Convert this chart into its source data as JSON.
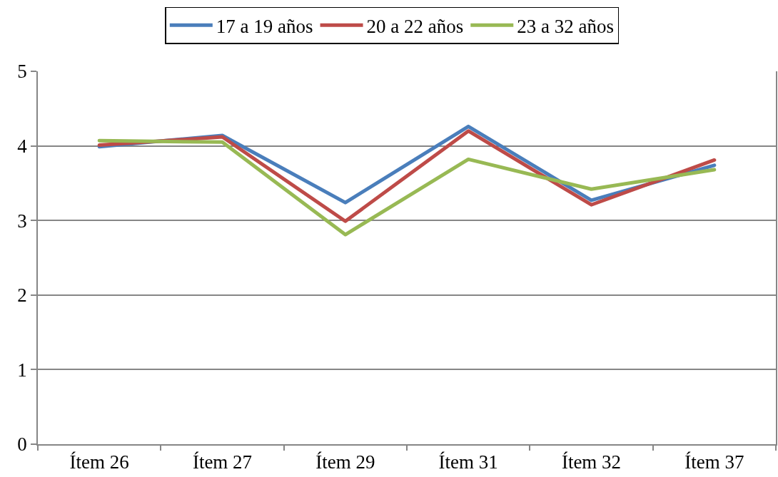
{
  "chart_data": {
    "type": "line",
    "categories": [
      "Ítem 26",
      "Ítem 27",
      "Ítem 29",
      "Ítem 31",
      "Ítem 32",
      "Ítem 37"
    ],
    "series": [
      {
        "name": "17 a 19 años",
        "color": "#4a7ebb",
        "values": [
          3.99,
          4.14,
          3.24,
          4.26,
          3.27,
          3.74
        ]
      },
      {
        "name": "20 a 22 años",
        "color": "#be4b48",
        "values": [
          4.01,
          4.12,
          2.99,
          4.2,
          3.21,
          3.81
        ]
      },
      {
        "name": "23 a 32 años",
        "color": "#98b954",
        "values": [
          4.07,
          4.05,
          2.81,
          3.82,
          3.42,
          3.68
        ]
      }
    ],
    "ylim": [
      0,
      5
    ],
    "yticks": [
      0,
      1,
      2,
      3,
      4,
      5
    ],
    "grid": "y",
    "legend": "top",
    "line_style": "solid"
  }
}
